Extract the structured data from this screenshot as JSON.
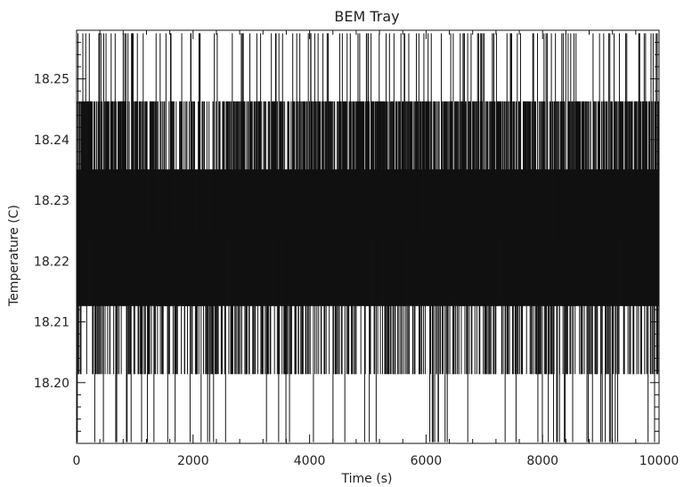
{
  "chart_data": {
    "type": "line",
    "title": "BEM Tray",
    "xlabel": "Time (s)",
    "ylabel": "Temperature (C)",
    "xlim": [
      0,
      10000
    ],
    "ylim": [
      18.19,
      18.258
    ],
    "x_ticks": [
      0,
      2000,
      4000,
      6000,
      8000,
      10000
    ],
    "x_tick_labels": [
      "0",
      "2000",
      "4000",
      "6000",
      "8000",
      "10000"
    ],
    "y_ticks": [
      18.2,
      18.21,
      18.22,
      18.23,
      18.24,
      18.25
    ],
    "y_tick_labels": [
      "18.20",
      "18.21",
      "18.22",
      "18.23",
      "18.24",
      "18.25"
    ],
    "grid": false,
    "line_color": "#111111",
    "quantization_levels": [
      18.1902,
      18.2014,
      18.2126,
      18.2238,
      18.2351,
      18.2463,
      18.2575
    ],
    "series": [
      {
        "x": [
          0,
          500,
          1000,
          1400,
          2000,
          3000,
          4000,
          5000,
          6000,
          6600,
          7000,
          8000,
          9000,
          10000
        ],
        "y": [
          18.2238,
          18.2238,
          18.2238,
          18.2238,
          18.2238,
          18.2238,
          18.2238,
          18.2238,
          18.2238,
          18.2238,
          18.2238,
          18.2238,
          18.2238,
          18.2238
        ],
        "band_low": [
          18.2126,
          18.2126,
          18.2126,
          18.2126,
          18.2126,
          18.2126,
          18.2126,
          18.2126,
          18.2126,
          18.2126,
          18.2126,
          18.2126,
          18.2126,
          18.2126
        ],
        "band_high": [
          18.2351,
          18.2351,
          18.2351,
          18.2351,
          18.2351,
          18.2351,
          18.2351,
          18.2351,
          18.2351,
          18.2351,
          18.2351,
          18.2351,
          18.2351,
          18.2351
        ]
      }
    ]
  }
}
